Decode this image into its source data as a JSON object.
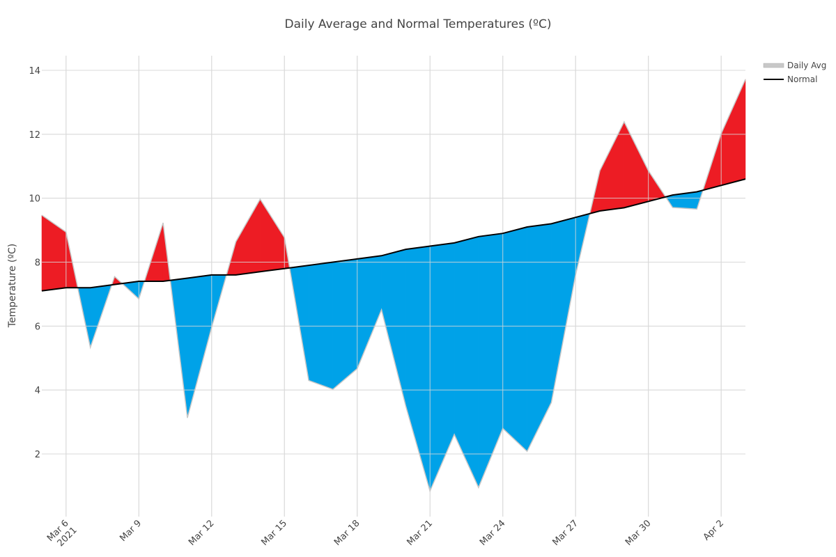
{
  "chart_data": {
    "type": "area",
    "title": "Daily Average and Normal Temperatures (ºC)",
    "xlabel": "",
    "ylabel": "Temperature (ºC)",
    "ylim": [
      0.2,
      14.5
    ],
    "grid": true,
    "legend_position": "top-right",
    "x_start_date": "2021-03-05",
    "dates": [
      "2021-03-05",
      "2021-03-06",
      "2021-03-07",
      "2021-03-08",
      "2021-03-09",
      "2021-03-10",
      "2021-03-11",
      "2021-03-12",
      "2021-03-13",
      "2021-03-14",
      "2021-03-15",
      "2021-03-16",
      "2021-03-17",
      "2021-03-18",
      "2021-03-19",
      "2021-03-20",
      "2021-03-21",
      "2021-03-22",
      "2021-03-23",
      "2021-03-24",
      "2021-03-25",
      "2021-03-26",
      "2021-03-27",
      "2021-03-28",
      "2021-03-29",
      "2021-03-30",
      "2021-03-31",
      "2021-04-01",
      "2021-04-02",
      "2021-04-03"
    ],
    "x_ticks": [
      {
        "day": 1,
        "label": "Mar 6",
        "sublabel": "2021"
      },
      {
        "day": 4,
        "label": "Mar 9"
      },
      {
        "day": 7,
        "label": "Mar 12"
      },
      {
        "day": 10,
        "label": "Mar 15"
      },
      {
        "day": 13,
        "label": "Mar 18"
      },
      {
        "day": 16,
        "label": "Mar 21"
      },
      {
        "day": 19,
        "label": "Mar 24"
      },
      {
        "day": 22,
        "label": "Mar 27"
      },
      {
        "day": 25,
        "label": "Mar 30"
      },
      {
        "day": 28,
        "label": "Apr 2"
      }
    ],
    "y_ticks": [
      2,
      4,
      6,
      8,
      10,
      12,
      14
    ],
    "series": [
      {
        "name": "Daily Avg",
        "color": "#c8c8c8",
        "values": [
          9.47,
          8.94,
          5.33,
          7.55,
          6.85,
          9.23,
          3.13,
          5.96,
          8.64,
          9.97,
          8.77,
          4.3,
          4.02,
          4.67,
          6.51,
          3.5,
          0.84,
          2.61,
          0.95,
          2.8,
          2.08,
          3.61,
          7.6,
          10.86,
          12.39,
          10.86,
          9.71,
          9.66,
          12.02,
          13.72
        ]
      },
      {
        "name": "Normal",
        "color": "#000000",
        "values": [
          7.1,
          7.2,
          7.2,
          7.3,
          7.4,
          7.4,
          7.5,
          7.6,
          7.6,
          7.7,
          7.8,
          7.9,
          8.0,
          8.1,
          8.2,
          8.4,
          8.5,
          8.6,
          8.8,
          8.9,
          9.1,
          9.2,
          9.4,
          9.6,
          9.7,
          9.9,
          10.1,
          10.2,
          10.4,
          10.6
        ]
      }
    ],
    "fill_colors": {
      "above_normal": "#ed1c24",
      "below_normal": "#00a2e8"
    }
  }
}
